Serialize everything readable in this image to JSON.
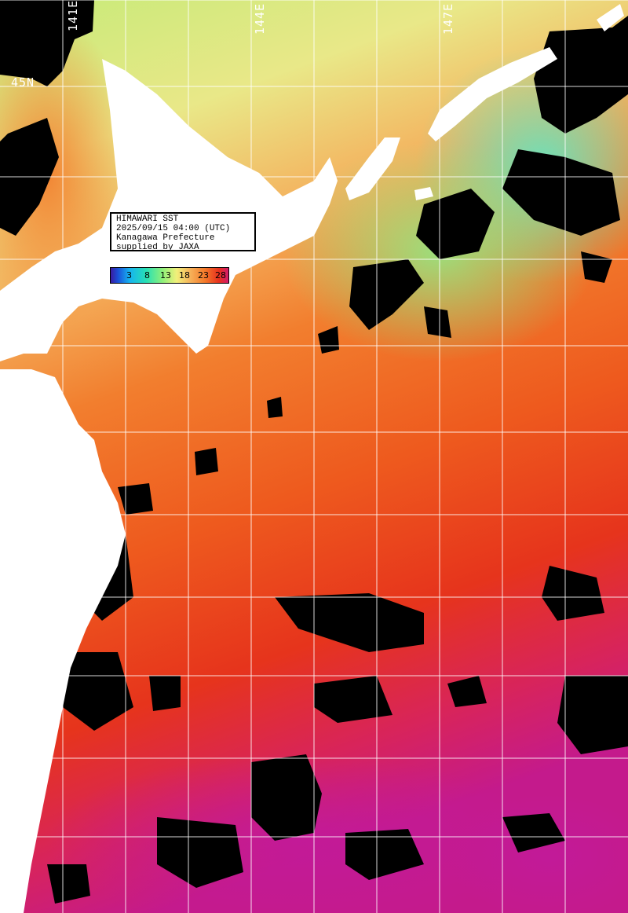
{
  "info": {
    "title": "HIMAWARI SST",
    "datetime": "2025/09/15 04:00 (UTC)",
    "region": "Kanagawa Prefecture",
    "credit": "supplied by JAXA"
  },
  "legend": {
    "ticks": [
      "3",
      "8",
      "13",
      "18",
      "23",
      "28"
    ],
    "colors": [
      "#3a1aa0",
      "#16b3f0",
      "#8ef07a",
      "#f1f07a",
      "#f47a2a",
      "#e7301e",
      "#d31b6c"
    ]
  },
  "grid_labels": {
    "lon": [
      "141E",
      "144E",
      "147E"
    ],
    "lat": [
      "45N"
    ]
  },
  "colors": {
    "land": "#ffffff",
    "cloud": "#000000",
    "grid": "#ffffff"
  }
}
